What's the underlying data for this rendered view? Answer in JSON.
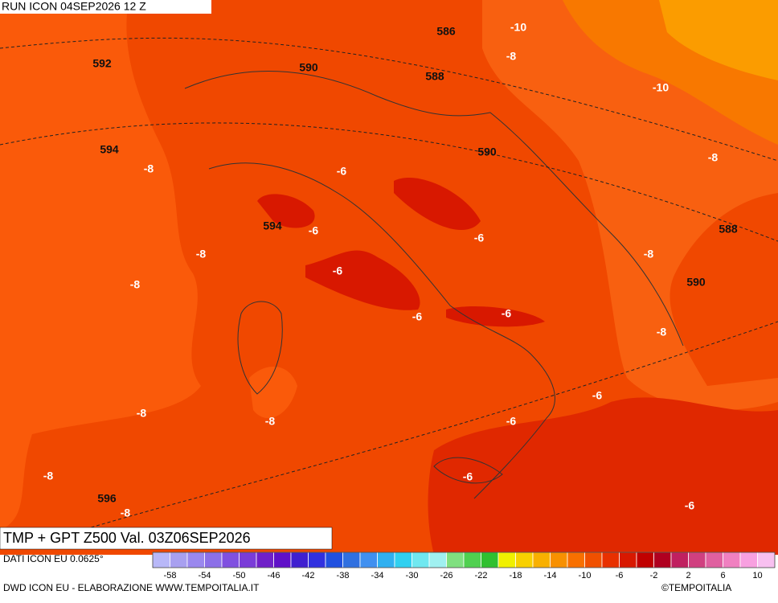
{
  "header": {
    "run_label": "RUN ICON 04SEP2026 12 Z"
  },
  "map": {
    "contour_labels": [
      "586",
      "-10",
      "592",
      "590",
      "-8",
      "588",
      "-10",
      "594",
      "-8",
      "590",
      "-6",
      "-8",
      "594",
      "-6",
      "-6",
      "588",
      "-8",
      "-8",
      "-6",
      "-8",
      "590",
      "-6",
      "-6",
      "-8",
      "-6",
      "-8",
      "-8",
      "-6",
      "-8",
      "-6",
      "596",
      "-8",
      "-6"
    ]
  },
  "footer": {
    "title": "TMP + GPT Z500 Val. 03Z06SEP2026",
    "data_source": "DATI ICON EU 0.0625°",
    "credit": "DWD ICON EU - ELABORAZIONE WWW.TEMPOITALIA.IT",
    "logo": "©TEMPOITALIA"
  },
  "legend": {
    "colors": [
      "#b8b8f8",
      "#a8a0f0",
      "#9a88ee",
      "#8c70e8",
      "#8050e0",
      "#7a3cd8",
      "#7020c8",
      "#6010c8",
      "#4020d0",
      "#3030e0",
      "#2050e0",
      "#3070e0",
      "#4090f0",
      "#30b0f0",
      "#30d0f0",
      "#70e8f0",
      "#a0f0f0",
      "#80e080",
      "#50d050",
      "#30c030",
      "#f0f000",
      "#f8d000",
      "#f8b000",
      "#f89000",
      "#f87000",
      "#f05000",
      "#e83000",
      "#d81800",
      "#c00000",
      "#b00020",
      "#c02060",
      "#d04080",
      "#e060a0",
      "#f080c0",
      "#f8a0e0",
      "#f8c0f0"
    ],
    "ticks": [
      "-58",
      "-54",
      "-50",
      "-46",
      "-42",
      "-38",
      "-34",
      "-30",
      "-26",
      "-22",
      "-18",
      "-14",
      "-10",
      "-6",
      "-2",
      "2",
      "6",
      "10"
    ]
  }
}
